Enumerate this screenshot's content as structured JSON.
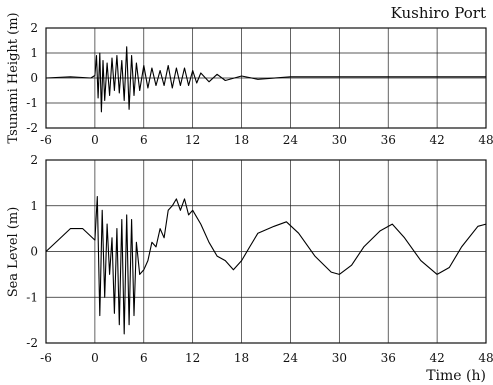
{
  "title": "Kushiro Port",
  "chart_data": [
    {
      "type": "line",
      "ylabel": "Tsunami Height (m)",
      "xlim": [
        -6,
        48
      ],
      "ylim": [
        -2,
        2
      ],
      "x_ticks": [
        "-6",
        "0",
        "6",
        "12",
        "18",
        "24",
        "30",
        "36",
        "42",
        "48"
      ],
      "y_ticks": [
        "2",
        "1",
        "0",
        "-1",
        "-2"
      ],
      "grid": true,
      "series": [
        {
          "x": [
            -6,
            -3,
            -0.5,
            0,
            0.2,
            0.4,
            0.6,
            0.8,
            1.0,
            1.2,
            1.5,
            1.8,
            2.1,
            2.4,
            2.7,
            3.0,
            3.3,
            3.6,
            3.9,
            4.2,
            4.5,
            4.8,
            5.1,
            5.5,
            6.0,
            6.5,
            7.0,
            7.5,
            8.0,
            8.5,
            9.0,
            9.5,
            10.0,
            10.5,
            11.0,
            11.5,
            12.0,
            12.5,
            13.0,
            14.0,
            15.0,
            16.0,
            18.0,
            20.0,
            24.0,
            30.0,
            36.0,
            42.0,
            48.0
          ],
          "y": [
            0,
            0.05,
            0,
            0.1,
            0.9,
            -0.8,
            1.0,
            -1.35,
            0.7,
            -0.9,
            0.6,
            -0.7,
            0.8,
            -0.5,
            0.9,
            -0.6,
            0.7,
            -0.9,
            1.25,
            -1.25,
            0.9,
            -0.7,
            0.6,
            -0.5,
            0.5,
            -0.4,
            0.4,
            -0.3,
            0.3,
            -0.3,
            0.5,
            -0.4,
            0.4,
            -0.3,
            0.4,
            -0.3,
            0.3,
            -0.2,
            0.2,
            -0.15,
            0.15,
            -0.1,
            0.08,
            -0.05,
            0.05,
            0.05,
            0.05,
            0.05,
            0.05
          ]
        }
      ]
    },
    {
      "type": "line",
      "ylabel": "Sea Level (m)",
      "xlabel": "Time (h)",
      "xlim": [
        -6,
        48
      ],
      "ylim": [
        -2,
        2
      ],
      "x_ticks": [
        "-6",
        "0",
        "6",
        "12",
        "18",
        "24",
        "30",
        "36",
        "42",
        "48"
      ],
      "y_ticks": [
        "2",
        "1",
        "0",
        "-1",
        "-2"
      ],
      "grid": true,
      "series": [
        {
          "x": [
            -6,
            -4.5,
            -3,
            -1.5,
            0,
            0.3,
            0.6,
            0.9,
            1.2,
            1.5,
            1.8,
            2.1,
            2.4,
            2.7,
            3.0,
            3.3,
            3.6,
            3.9,
            4.2,
            4.5,
            4.8,
            5.1,
            5.5,
            6.0,
            6.5,
            7.0,
            7.5,
            8.0,
            8.5,
            9.0,
            9.5,
            10.0,
            10.5,
            11.0,
            11.5,
            12.0,
            13.0,
            14.0,
            15.0,
            16.0,
            17.0,
            18.0,
            19.0,
            20.0,
            22.0,
            23.5,
            25.0,
            27.0,
            29.0,
            30.0,
            31.5,
            33.0,
            35.0,
            36.5,
            38.0,
            40.0,
            42.0,
            43.5,
            45.0,
            47.0,
            48.0
          ],
          "y": [
            0,
            0.25,
            0.5,
            0.5,
            0.25,
            1.2,
            -1.4,
            0.9,
            -1.0,
            0.6,
            -0.5,
            0.3,
            -1.35,
            0.5,
            -1.6,
            0.7,
            -1.8,
            0.8,
            -1.6,
            0.7,
            -1.4,
            0.2,
            -0.5,
            -0.4,
            -0.2,
            0.2,
            0.1,
            0.5,
            0.3,
            0.9,
            1.0,
            1.15,
            0.9,
            1.15,
            0.8,
            0.9,
            0.6,
            0.2,
            -0.1,
            -0.2,
            -0.4,
            -0.2,
            0.1,
            0.4,
            0.55,
            0.65,
            0.4,
            -0.1,
            -0.45,
            -0.5,
            -0.3,
            0.1,
            0.45,
            0.6,
            0.3,
            -0.2,
            -0.5,
            -0.35,
            0.1,
            0.55,
            0.6
          ]
        }
      ]
    }
  ]
}
